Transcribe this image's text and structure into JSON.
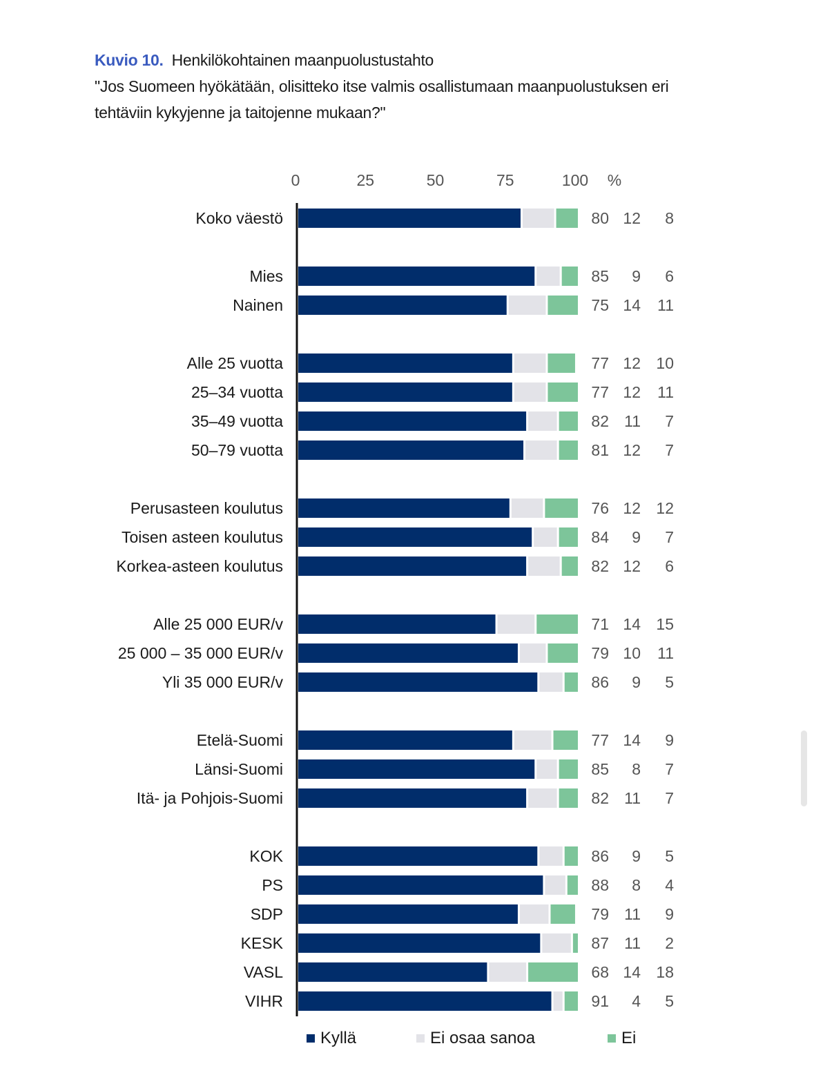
{
  "figure": {
    "number_label": "Kuvio 10.",
    "title": "Henkilökohtainen maanpuolustustahto",
    "question_line1": "\"Jos Suomeen hyökätään, olisitteko itse valmis osallistumaan maanpuolustuksen eri",
    "question_line2": "tehtäviin kykyjenne ja taitojenne mukaan?\""
  },
  "colors": {
    "fig_number": "#3a5bbf",
    "kylla": "#012d6b",
    "eos": "#e3e3e8",
    "ei": "#7dc59a",
    "axis": "#111111"
  },
  "chart_data": {
    "type": "bar",
    "orientation": "horizontal",
    "stacked": true,
    "title": "Henkilökohtainen maanpuolustustahto",
    "xlabel": "%",
    "ylabel": "",
    "xlim": [
      0,
      100
    ],
    "x_ticks": [
      "0",
      "25",
      "50",
      "75",
      "100"
    ],
    "x_unit": "%",
    "grid": false,
    "legend_position": "bottom",
    "series": [
      {
        "name": "Kyllä",
        "color": "#012d6b"
      },
      {
        "name": "Ei osaa sanoa",
        "color": "#e3e3e8"
      },
      {
        "name": "Ei",
        "color": "#7dc59a"
      }
    ],
    "groups": [
      {
        "rows": [
          {
            "label": "Koko väestö",
            "values": [
              80,
              12,
              8
            ]
          }
        ]
      },
      {
        "rows": [
          {
            "label": "Mies",
            "values": [
              85,
              9,
              6
            ]
          },
          {
            "label": "Nainen",
            "values": [
              75,
              14,
              11
            ]
          }
        ]
      },
      {
        "rows": [
          {
            "label": "Alle 25 vuotta",
            "values": [
              77,
              12,
              10
            ]
          },
          {
            "label": "25–34 vuotta",
            "values": [
              77,
              12,
              11
            ]
          },
          {
            "label": "35–49 vuotta",
            "values": [
              82,
              11,
              7
            ]
          },
          {
            "label": "50–79 vuotta",
            "values": [
              81,
              12,
              7
            ]
          }
        ]
      },
      {
        "rows": [
          {
            "label": "Perusasteen koulutus",
            "values": [
              76,
              12,
              12
            ]
          },
          {
            "label": "Toisen asteen koulutus",
            "values": [
              84,
              9,
              7
            ]
          },
          {
            "label": "Korkea-asteen koulutus",
            "values": [
              82,
              12,
              6
            ]
          }
        ]
      },
      {
        "rows": [
          {
            "label": "Alle 25 000 EUR/v",
            "values": [
              71,
              14,
              15
            ]
          },
          {
            "label": "25 000 – 35 000 EUR/v",
            "values": [
              79,
              10,
              11
            ]
          },
          {
            "label": "Yli 35 000 EUR/v",
            "values": [
              86,
              9,
              5
            ]
          }
        ]
      },
      {
        "rows": [
          {
            "label": "Etelä-Suomi",
            "values": [
              77,
              14,
              9
            ]
          },
          {
            "label": "Länsi-Suomi",
            "values": [
              85,
              8,
              7
            ]
          },
          {
            "label": "Itä- ja Pohjois-Suomi",
            "values": [
              82,
              11,
              7
            ]
          }
        ]
      },
      {
        "rows": [
          {
            "label": "KOK",
            "values": [
              86,
              9,
              5
            ]
          },
          {
            "label": "PS",
            "values": [
              88,
              8,
              4
            ]
          },
          {
            "label": "SDP",
            "values": [
              79,
              11,
              9
            ]
          },
          {
            "label": "KESK",
            "values": [
              87,
              11,
              2
            ]
          },
          {
            "label": "VASL",
            "values": [
              68,
              14,
              18
            ]
          },
          {
            "label": "VIHR",
            "values": [
              91,
              4,
              5
            ]
          }
        ]
      }
    ]
  },
  "legend": {
    "items": [
      {
        "label": "Kyllä"
      },
      {
        "label": "Ei osaa sanoa"
      },
      {
        "label": "Ei"
      }
    ]
  }
}
